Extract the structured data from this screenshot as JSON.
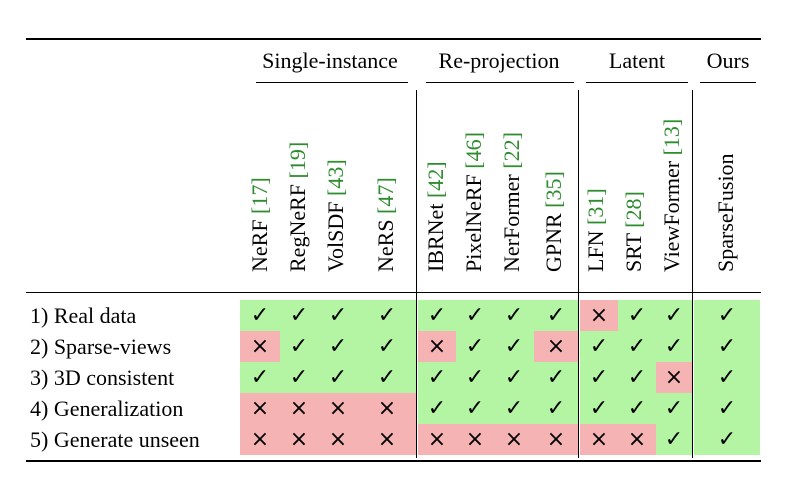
{
  "table": {
    "groups": [
      {
        "label": "Single-instance"
      },
      {
        "label": "Re-projection"
      },
      {
        "label": "Latent"
      },
      {
        "label": "Ours"
      }
    ],
    "methods": [
      {
        "name": "NeRF",
        "cite": "[17]"
      },
      {
        "name": "RegNeRF",
        "cite": "[19]"
      },
      {
        "name": "VolSDF",
        "cite": "[43]"
      },
      {
        "name": "NeRS",
        "cite": "[47]"
      },
      {
        "name": "IBRNet",
        "cite": "[42]"
      },
      {
        "name": "PixelNeRF",
        "cite": "[46]"
      },
      {
        "name": "NerFormer",
        "cite": "[22]"
      },
      {
        "name": "GPNR",
        "cite": "[35]"
      },
      {
        "name": "LFN",
        "cite": "[31]"
      },
      {
        "name": "SRT",
        "cite": "[28]"
      },
      {
        "name": "ViewFormer",
        "cite": "[13]"
      },
      {
        "name": "SparseFusion",
        "cite": ""
      }
    ],
    "rows": [
      {
        "label": "1) Real data",
        "values": [
          1,
          1,
          1,
          1,
          1,
          1,
          1,
          1,
          0,
          1,
          1,
          1
        ]
      },
      {
        "label": "2) Sparse-views",
        "values": [
          0,
          1,
          1,
          1,
          0,
          1,
          1,
          0,
          1,
          1,
          1,
          1
        ]
      },
      {
        "label": "3) 3D consistent",
        "values": [
          1,
          1,
          1,
          1,
          1,
          1,
          1,
          1,
          1,
          1,
          0,
          1
        ]
      },
      {
        "label": "4) Generalization",
        "values": [
          0,
          0,
          0,
          0,
          1,
          1,
          1,
          1,
          1,
          1,
          1,
          1
        ]
      },
      {
        "label": "5) Generate unseen",
        "values": [
          0,
          0,
          0,
          0,
          0,
          0,
          0,
          0,
          0,
          0,
          1,
          1
        ]
      }
    ],
    "yes_symbol": "✓",
    "no_symbol": "×",
    "colors": {
      "yes": "#b3f5a3",
      "no": "#f6b3b3",
      "cite": "#2e8b2e"
    }
  }
}
